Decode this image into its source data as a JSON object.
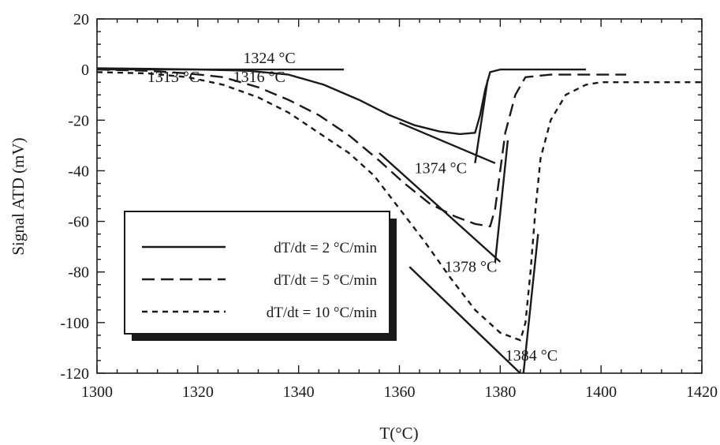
{
  "chart_data": {
    "type": "line",
    "title": "",
    "xlabel": "T(°C)",
    "ylabel": "Signal ATD (mV)",
    "xlim": [
      1300,
      1420
    ],
    "ylim": [
      -120,
      20
    ],
    "xticks": [
      1300,
      1320,
      1340,
      1360,
      1380,
      1400,
      1420
    ],
    "yticks": [
      20,
      0,
      -20,
      -40,
      -60,
      -80,
      -100,
      -120
    ],
    "grid": false,
    "legend_position": "lower-left",
    "series": [
      {
        "name": "dT/dt = 2 °C/min",
        "style": "solid",
        "points": [
          [
            1300,
            0.5
          ],
          [
            1310,
            0.3
          ],
          [
            1320,
            0
          ],
          [
            1330,
            -0.5
          ],
          [
            1338,
            -2
          ],
          [
            1345,
            -6
          ],
          [
            1352,
            -12
          ],
          [
            1358,
            -18
          ],
          [
            1363,
            -22
          ],
          [
            1368,
            -24.5
          ],
          [
            1372,
            -25.5
          ],
          [
            1375,
            -25
          ],
          [
            1376,
            -18
          ],
          [
            1377,
            -8
          ],
          [
            1378,
            -1
          ],
          [
            1380,
            0
          ],
          [
            1390,
            0
          ],
          [
            1397,
            0
          ]
        ]
      },
      {
        "name": "dT/dt = 5 °C/min",
        "style": "dashed",
        "points": [
          [
            1300,
            0
          ],
          [
            1310,
            -0.5
          ],
          [
            1318,
            -1.5
          ],
          [
            1325,
            -3
          ],
          [
            1332,
            -7
          ],
          [
            1338,
            -12
          ],
          [
            1344,
            -18
          ],
          [
            1350,
            -26
          ],
          [
            1356,
            -36
          ],
          [
            1361,
            -45
          ],
          [
            1366,
            -53
          ],
          [
            1371,
            -58
          ],
          [
            1375,
            -61
          ],
          [
            1378,
            -62
          ],
          [
            1379,
            -55
          ],
          [
            1380,
            -40
          ],
          [
            1381,
            -25
          ],
          [
            1383,
            -10
          ],
          [
            1385,
            -3
          ],
          [
            1390,
            -2
          ],
          [
            1400,
            -2
          ],
          [
            1405,
            -2
          ]
        ]
      },
      {
        "name": "dT/dt = 10 °C/min",
        "style": "dotted",
        "points": [
          [
            1300,
            -1
          ],
          [
            1310,
            -1.5
          ],
          [
            1318,
            -3
          ],
          [
            1325,
            -6
          ],
          [
            1332,
            -11
          ],
          [
            1338,
            -17
          ],
          [
            1344,
            -25
          ],
          [
            1350,
            -33
          ],
          [
            1355,
            -42
          ],
          [
            1360,
            -55
          ],
          [
            1365,
            -68
          ],
          [
            1370,
            -82
          ],
          [
            1375,
            -95
          ],
          [
            1380,
            -104
          ],
          [
            1384,
            -107
          ],
          [
            1385,
            -100
          ],
          [
            1386,
            -80
          ],
          [
            1387,
            -55
          ],
          [
            1388,
            -35
          ],
          [
            1390,
            -20
          ],
          [
            1393,
            -10
          ],
          [
            1397,
            -6
          ],
          [
            1400,
            -5
          ],
          [
            1410,
            -5
          ],
          [
            1420,
            -5
          ]
        ]
      }
    ],
    "reference_lines": [
      {
        "label": "onset 1324 °C",
        "style": "solid",
        "points": [
          [
            1300,
            0
          ],
          [
            1349,
            0
          ]
        ]
      },
      {
        "label": "tangent 2 °C/min",
        "style": "solid",
        "points": [
          [
            1360,
            -21
          ],
          [
            1379,
            -37
          ]
        ]
      },
      {
        "label": "return 2 °C/min",
        "style": "solid",
        "points": [
          [
            1375,
            -37
          ],
          [
            1377.5,
            -4
          ]
        ]
      },
      {
        "label": "tangent 5 °C/min",
        "style": "solid",
        "points": [
          [
            1356,
            -33
          ],
          [
            1380,
            -76
          ]
        ]
      },
      {
        "label": "return 5 °C/min",
        "style": "solid",
        "points": [
          [
            1379,
            -76
          ],
          [
            1381.5,
            -28
          ]
        ]
      },
      {
        "label": "tangent 10 °C/min",
        "style": "solid",
        "points": [
          [
            1362,
            -78
          ],
          [
            1385,
            -122
          ]
        ]
      },
      {
        "label": "return 10 °C/min",
        "style": "solid",
        "points": [
          [
            1384.5,
            -122
          ],
          [
            1387.5,
            -65
          ]
        ]
      }
    ],
    "annotations": [
      {
        "text": "1324 °C",
        "x": 1329,
        "y": 2.5
      },
      {
        "text": "1313 °C",
        "x": 1310,
        "y": -5
      },
      {
        "text": "1316 °C",
        "x": 1327,
        "y": -5
      },
      {
        "text": "1374 °C",
        "x": 1363,
        "y": -41
      },
      {
        "text": "1378 °C",
        "x": 1369,
        "y": -80
      },
      {
        "text": "1384 °C",
        "x": 1381,
        "y": -115
      }
    ]
  }
}
